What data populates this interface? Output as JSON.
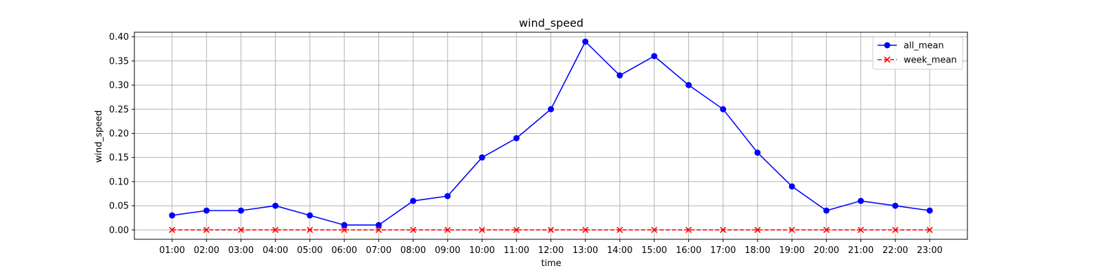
{
  "chart_data": {
    "type": "line",
    "title": "wind_speed",
    "xlabel": "time",
    "ylabel": "wind_speed",
    "categories": [
      "01:00",
      "02:00",
      "03:00",
      "04:00",
      "05:00",
      "06:00",
      "07:00",
      "08:00",
      "09:00",
      "10:00",
      "11:00",
      "12:00",
      "13:00",
      "14:00",
      "15:00",
      "16:00",
      "17:00",
      "18:00",
      "19:00",
      "20:00",
      "21:00",
      "22:00",
      "23:00"
    ],
    "yticks": [
      "0.00",
      "0.05",
      "0.10",
      "0.15",
      "0.20",
      "0.25",
      "0.30",
      "0.35",
      "0.40"
    ],
    "ylim": [
      -0.0195,
      0.4095
    ],
    "grid": true,
    "legend_position": "top-right",
    "series": [
      {
        "name": "all_mean",
        "color": "#0000ff",
        "marker": "circle",
        "line_style": "solid",
        "values": [
          0.03,
          0.04,
          0.04,
          0.05,
          0.03,
          0.01,
          0.01,
          0.06,
          0.07,
          0.15,
          0.19,
          0.25,
          0.39,
          0.32,
          0.36,
          0.3,
          0.25,
          0.16,
          0.09,
          0.04,
          0.06,
          0.05,
          0.04
        ]
      },
      {
        "name": "week_mean",
        "color": "#ff0000",
        "marker": "x",
        "line_style": "dashed",
        "values": [
          0,
          0,
          0,
          0,
          0,
          0,
          0,
          0,
          0,
          0,
          0,
          0,
          0,
          0,
          0,
          0,
          0,
          0,
          0,
          0,
          0,
          0,
          0
        ]
      }
    ]
  }
}
